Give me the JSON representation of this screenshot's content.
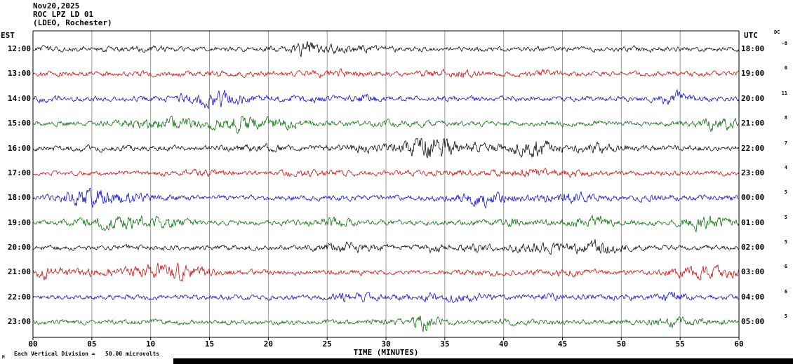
{
  "header": {
    "date": "Nov20,2025",
    "station": "ROC LPZ LD 01",
    "location": "(LDEO, Rochester)"
  },
  "axes": {
    "left_label": "EST",
    "right_label": "UTC",
    "corner_label": "DC",
    "x_ticks": [
      "00",
      "05",
      "10",
      "15",
      "20",
      "25",
      "30",
      "35",
      "40",
      "45",
      "50",
      "55",
      "60"
    ],
    "x_axis_label": "TIME (MINUTES)"
  },
  "footer": {
    "marker": "M",
    "scale_note": "Each Vertical Division =   50.00 microvolts"
  },
  "chart_data": {
    "type": "line",
    "title": "ROC LPZ LD 01 helicorder, (LDEO, Rochester), Nov20,2025",
    "xlabel": "TIME (MINUTES)",
    "x_range_minutes": [
      0,
      60
    ],
    "x_tick_interval_minutes": 5,
    "vertical_division_microvolts": 50.0,
    "grid": true,
    "trace_color_cycle": [
      "#000000",
      "#cc0000",
      "#0000cc",
      "#006600"
    ],
    "waveform_description": "continuous ambient seismic noise, one 60-minute trace per hour, small-amplitude with occasional short bursts",
    "rows": [
      {
        "est": "12:00",
        "utc": "18:00",
        "gain": "-8",
        "color": "#000000"
      },
      {
        "est": "13:00",
        "utc": "19:00",
        "gain": "6",
        "color": "#cc0000"
      },
      {
        "est": "14:00",
        "utc": "20:00",
        "gain": "11",
        "color": "#0000cc"
      },
      {
        "est": "15:00",
        "utc": "21:00",
        "gain": "8",
        "color": "#006600"
      },
      {
        "est": "16:00",
        "utc": "22:00",
        "gain": "7",
        "color": "#000000"
      },
      {
        "est": "17:00",
        "utc": "23:00",
        "gain": "4",
        "color": "#cc0000"
      },
      {
        "est": "18:00",
        "utc": "00:00",
        "gain": "5",
        "color": "#0000cc"
      },
      {
        "est": "19:00",
        "utc": "01:00",
        "gain": "5",
        "color": "#006600"
      },
      {
        "est": "20:00",
        "utc": "02:00",
        "gain": "5",
        "color": "#000000"
      },
      {
        "est": "21:00",
        "utc": "03:00",
        "gain": "6",
        "color": "#cc0000"
      },
      {
        "est": "22:00",
        "utc": "04:00",
        "gain": "6",
        "color": "#0000cc"
      },
      {
        "est": "23:00",
        "utc": "05:00",
        "gain": "5",
        "color": "#006600"
      }
    ]
  }
}
